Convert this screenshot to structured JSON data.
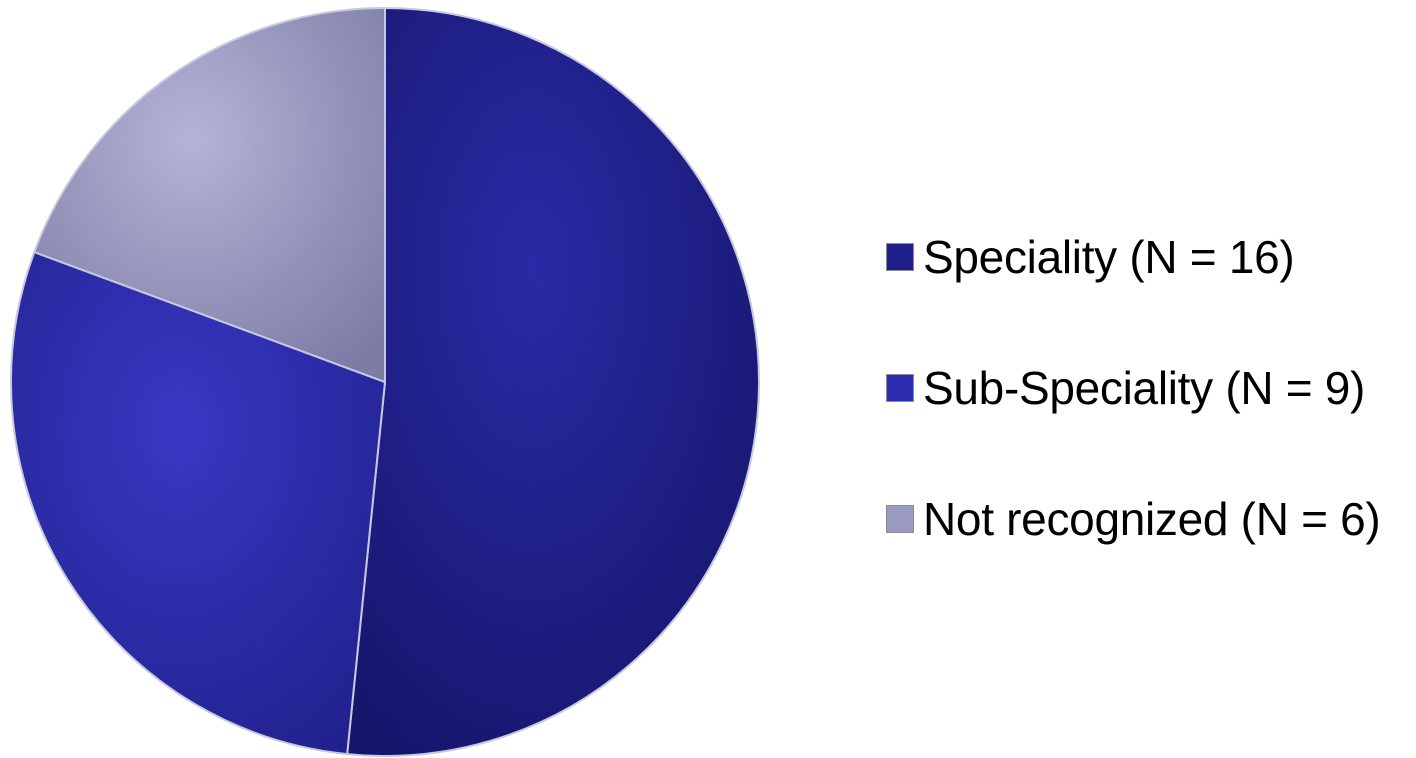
{
  "chart_data": {
    "type": "pie",
    "slices": [
      {
        "label": "Speciality (N = 16)",
        "value": 16,
        "color": "#1f1f8c"
      },
      {
        "label": "Sub-Speciality (N = 9)",
        "value": 9,
        "color": "#2c2cb0"
      },
      {
        "label": "Not recognized (N = 6)",
        "value": 6,
        "color": "#9a9ac0"
      }
    ],
    "start_angle_deg": 0,
    "direction": "clockwise",
    "legend_position": "right"
  }
}
